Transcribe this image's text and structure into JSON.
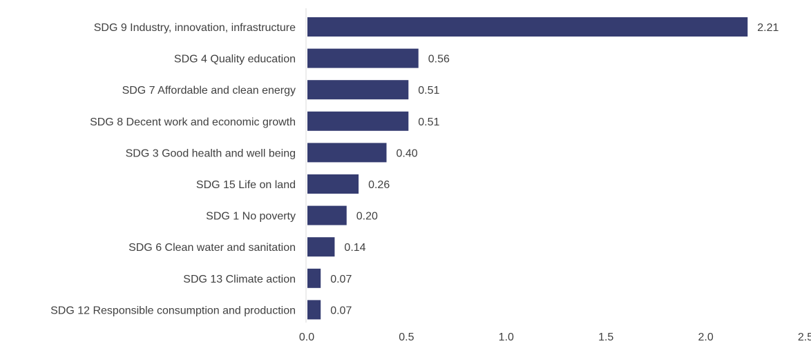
{
  "chart_data": {
    "type": "bar",
    "orientation": "horizontal",
    "categories": [
      "SDG 9 Industry, innovation, infrastructure",
      "SDG 4 Quality education",
      "SDG 7 Affordable and clean energy",
      "SDG 8 Decent work and economic growth",
      "SDG 3 Good health and well being",
      "SDG 15 Life on land",
      "SDG 1 No poverty",
      "SDG 6 Clean water and sanitation",
      "SDG 13 Climate action",
      "SDG 12 Responsible consumption and production"
    ],
    "values": [
      2.21,
      0.56,
      0.51,
      0.51,
      0.4,
      0.26,
      0.2,
      0.14,
      0.07,
      0.07
    ],
    "data_labels": [
      "2.21",
      "0.56",
      "0.51",
      "0.51",
      "0.40",
      "0.26",
      "0.20",
      "0.14",
      "0.07",
      "0.07"
    ],
    "xlim": [
      0,
      2.5
    ],
    "xticks": [
      "0.0",
      "0.5",
      "1.0",
      "1.5",
      "2.0",
      "2.5"
    ],
    "title": "",
    "xlabel": "",
    "ylabel": "",
    "grid": false,
    "legend": "none",
    "colors": {
      "bar": "#353c70",
      "axis_line": "#d9d9d9",
      "text": "#404040"
    }
  }
}
